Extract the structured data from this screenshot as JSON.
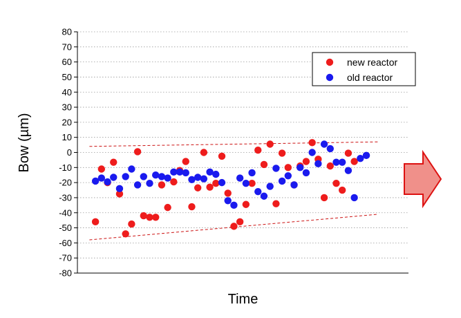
{
  "chart_data": {
    "type": "scatter",
    "xlabel": "Time",
    "ylabel": "Bow (µm)",
    "ylim": [
      -80,
      80
    ],
    "yticks": [
      80,
      70,
      60,
      50,
      40,
      30,
      20,
      10,
      0,
      -10,
      -20,
      -30,
      -40,
      -50,
      -60,
      -70,
      -80
    ],
    "grid": "horizontal dotted",
    "legend_position": "top-right",
    "series": [
      {
        "name": "new reactor",
        "color": "#ee1c1c",
        "points": [
          [
            1,
            -46
          ],
          [
            2,
            -11
          ],
          [
            3,
            -20
          ],
          [
            4,
            -6.5
          ],
          [
            5,
            -27.5
          ],
          [
            6,
            -54
          ],
          [
            7,
            -47.5
          ],
          [
            8,
            0.5
          ],
          [
            9,
            -42
          ],
          [
            10,
            -43
          ],
          [
            11,
            -43
          ],
          [
            12,
            -21.5
          ],
          [
            13,
            -36.5
          ],
          [
            14,
            -19.5
          ],
          [
            15,
            -12
          ],
          [
            16,
            -6
          ],
          [
            17,
            -36
          ],
          [
            18,
            -23.5
          ],
          [
            19,
            0
          ],
          [
            20,
            -23
          ],
          [
            21,
            -20.5
          ],
          [
            22,
            -2.5
          ],
          [
            23,
            -27
          ],
          [
            24,
            -49
          ],
          [
            25,
            -46
          ],
          [
            26,
            -34.5
          ],
          [
            27,
            -20.5
          ],
          [
            28,
            1.5
          ],
          [
            29,
            -8
          ],
          [
            30,
            5.5
          ],
          [
            31,
            -34
          ],
          [
            32,
            -0.5
          ],
          [
            33,
            -10
          ],
          [
            34,
            -21.5
          ],
          [
            35,
            -9
          ],
          [
            36,
            -6
          ],
          [
            37,
            6.5
          ],
          [
            38,
            -4.5
          ],
          [
            39,
            -30
          ],
          [
            40,
            -9
          ],
          [
            41,
            -20.5
          ],
          [
            42,
            -25
          ],
          [
            43,
            -0.5
          ],
          [
            44,
            -6
          ]
        ]
      },
      {
        "name": "old reactor",
        "color": "#1a1aee",
        "points": [
          [
            1,
            -19
          ],
          [
            2,
            -17
          ],
          [
            3,
            -19.5
          ],
          [
            4,
            -16.5
          ],
          [
            5,
            -24
          ],
          [
            6,
            -16
          ],
          [
            7,
            -11
          ],
          [
            8,
            -21.5
          ],
          [
            9,
            -16
          ],
          [
            10,
            -20.5
          ],
          [
            11,
            -15
          ],
          [
            12,
            -16
          ],
          [
            13,
            -17
          ],
          [
            14,
            -13
          ],
          [
            15,
            -13
          ],
          [
            16,
            -13.5
          ],
          [
            17,
            -18
          ],
          [
            18,
            -16.5
          ],
          [
            19,
            -17.5
          ],
          [
            20,
            -13
          ],
          [
            21,
            -14.5
          ],
          [
            22,
            -20
          ],
          [
            23,
            -32
          ],
          [
            24,
            -35
          ],
          [
            25,
            -17
          ],
          [
            26,
            -20.5
          ],
          [
            27,
            -13.5
          ],
          [
            28,
            -26
          ],
          [
            29,
            -29
          ],
          [
            30,
            -22.5
          ],
          [
            31,
            -10.5
          ],
          [
            32,
            -19
          ],
          [
            33,
            -15.5
          ],
          [
            34,
            -21.5
          ],
          [
            35,
            -10
          ],
          [
            36,
            -13.5
          ],
          [
            37,
            0
          ],
          [
            38,
            -7.5
          ],
          [
            39,
            5.5
          ],
          [
            40,
            2.5
          ],
          [
            41,
            -6.5
          ],
          [
            42,
            -6.5
          ],
          [
            43,
            -12
          ],
          [
            44,
            -30
          ],
          [
            45,
            -4
          ],
          [
            46,
            -2
          ]
        ]
      }
    ],
    "annotations": [
      {
        "type": "trend-line",
        "style": "dashed",
        "color": "#cc1111",
        "from": [
          0,
          4
        ],
        "to": [
          48,
          7
        ]
      },
      {
        "type": "trend-line",
        "style": "dashed",
        "color": "#cc1111",
        "from": [
          0,
          -58
        ],
        "to": [
          48,
          -41
        ]
      },
      {
        "type": "arrow",
        "direction": "right",
        "fill": "#f0908a",
        "stroke": "#dd1111"
      }
    ]
  }
}
